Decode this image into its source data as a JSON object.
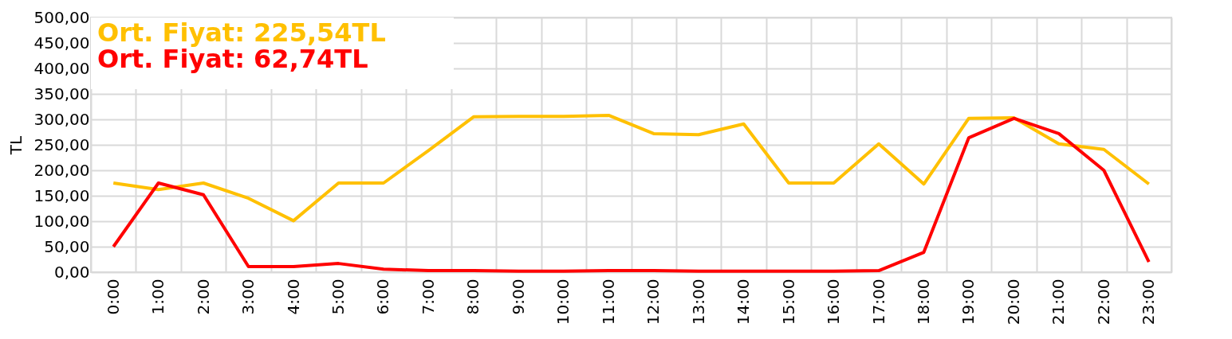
{
  "chart_data": {
    "type": "line",
    "ylabel": "TL",
    "categories": [
      "0:00",
      "1:00",
      "2:00",
      "3:00",
      "4:00",
      "5:00",
      "6:00",
      "7:00",
      "8:00",
      "9:00",
      "10:00",
      "11:00",
      "12:00",
      "13:00",
      "14:00",
      "15:00",
      "16:00",
      "17:00",
      "18:00",
      "19:00",
      "20:00",
      "21:00",
      "22:00",
      "23:00"
    ],
    "series": [
      {
        "color": "#ffc000",
        "values": [
          175,
          162,
          175,
          145,
          101,
          175,
          175,
          239,
          305,
          306,
          306,
          308,
          272,
          270,
          291,
          175,
          175,
          252,
          173,
          302,
          303,
          252,
          241,
          173
        ]
      },
      {
        "color": "#ff0000",
        "values": [
          50,
          175,
          152,
          11,
          11,
          17,
          6,
          3,
          3,
          2,
          2,
          3,
          3,
          2,
          2,
          2,
          2,
          3,
          39,
          264,
          302,
          272,
          200,
          20
        ]
      }
    ],
    "annotations": [
      "Ort. Fiyat:  225,54TL",
      "Ort. Fiyat:   62,74TL"
    ],
    "ylim": [
      0,
      500
    ],
    "yticks": [
      {
        "value": 0,
        "label": "0,00"
      },
      {
        "value": 50,
        "label": "50,00"
      },
      {
        "value": 100,
        "label": "100,00"
      },
      {
        "value": 150,
        "label": "150,00"
      },
      {
        "value": 200,
        "label": "200,00"
      },
      {
        "value": 250,
        "label": "250,00"
      },
      {
        "value": 300,
        "label": "300,00"
      },
      {
        "value": 350,
        "label": "350,00"
      },
      {
        "value": 400,
        "label": "400,00"
      },
      {
        "value": 450,
        "label": "450,00"
      },
      {
        "value": 500,
        "label": "500,00"
      }
    ],
    "grid": true,
    "legend": false,
    "marker": "none",
    "line_style": "solid"
  }
}
